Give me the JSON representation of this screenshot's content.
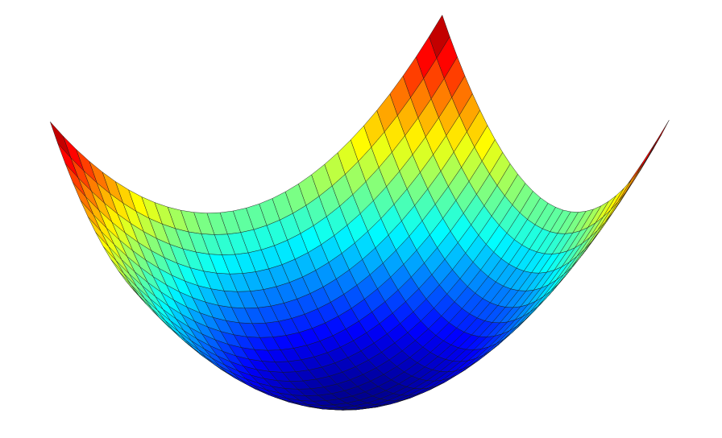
{
  "chart_data": {
    "type": "surface",
    "function": "z = x^2 + y^2",
    "x_range": [
      -1,
      1
    ],
    "y_range": [
      -1,
      1
    ],
    "z_range": [
      0,
      2
    ],
    "grid_cells": 30,
    "mesh_edges": true,
    "colormap": "jet",
    "axes_visible": false,
    "grid": false,
    "legend": "none",
    "colors": {
      "low": "#00008f",
      "high": "#800000",
      "mesh": "#1a1a1a",
      "background": "#ffffff"
    }
  }
}
